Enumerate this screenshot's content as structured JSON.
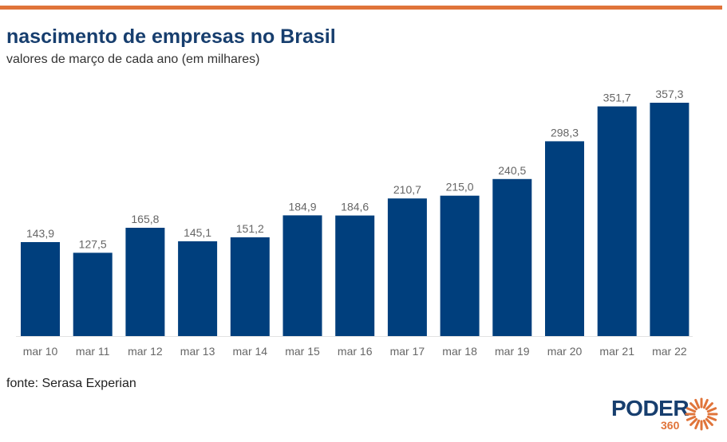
{
  "header": {
    "title": "nascimento de empresas no Brasil",
    "subtitle": "valores de março de cada ano (em milhares)"
  },
  "footer": {
    "source": "fonte: Serasa Experian",
    "logo_word": "PODER",
    "logo_number": "360"
  },
  "colors": {
    "accent_bar": "#e0743a",
    "bar": "#003f7d",
    "title": "#173e6e"
  },
  "chart_data": {
    "type": "bar",
    "title": "nascimento de empresas no Brasil",
    "subtitle": "valores de março de cada ano (em milhares)",
    "categories": [
      "mar 10",
      "mar 11",
      "mar 12",
      "mar 13",
      "mar 14",
      "mar 15",
      "mar 16",
      "mar 17",
      "mar 18",
      "mar 19",
      "mar 20",
      "mar 21",
      "mar 22"
    ],
    "values": [
      143.9,
      127.5,
      165.8,
      145.1,
      151.2,
      184.9,
      184.6,
      210.7,
      215.0,
      240.5,
      298.3,
      351.7,
      357.3
    ],
    "value_labels": [
      "143,9",
      "127,5",
      "165,8",
      "145,1",
      "151,2",
      "184,9",
      "184,6",
      "210,7",
      "215,0",
      "240,5",
      "298,3",
      "351,7",
      "357,3"
    ],
    "xlabel": "",
    "ylabel": "",
    "ylim": [
      0,
      357.3
    ],
    "grid": false,
    "legend": "none"
  }
}
